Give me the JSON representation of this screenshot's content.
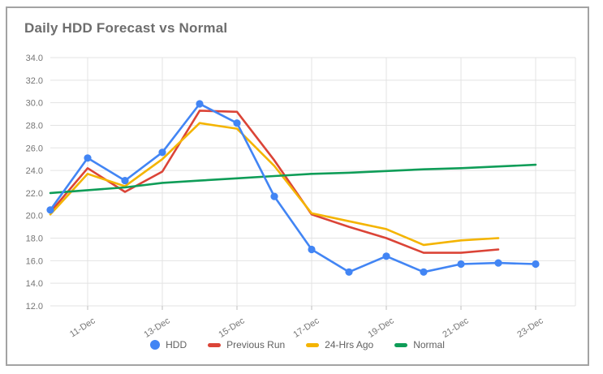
{
  "chart_data": {
    "type": "line",
    "title": "Daily HDD Forecast vs Normal",
    "xlabel": "",
    "ylabel": "",
    "ylim": [
      12,
      34
    ],
    "grid": true,
    "legend_position": "bottom",
    "x": [
      "10-Dec",
      "11-Dec",
      "12-Dec",
      "13-Dec",
      "14-Dec",
      "15-Dec",
      "16-Dec",
      "17-Dec",
      "18-Dec",
      "19-Dec",
      "20-Dec",
      "21-Dec",
      "22-Dec",
      "23-Dec"
    ],
    "x_tick_labels": [
      "11-Dec",
      "13-Dec",
      "15-Dec",
      "17-Dec",
      "19-Dec",
      "21-Dec",
      "23-Dec"
    ],
    "x_tick_indices": [
      1,
      3,
      5,
      7,
      9,
      11,
      13
    ],
    "y_ticks": [
      34,
      32,
      30,
      28,
      26,
      24,
      22,
      20,
      18,
      16,
      14,
      12
    ],
    "y_tick_labels": [
      "34.0",
      "32.0",
      "30.0",
      "28.0",
      "26.0",
      "24.0",
      "22.0",
      "20.0",
      "18.0",
      "16.0",
      "14.0",
      "12.0"
    ],
    "series": [
      {
        "name": "HDD",
        "color": "#4285f4",
        "marker": "circle",
        "values": [
          20.5,
          25.1,
          23.1,
          25.6,
          29.9,
          28.2,
          21.7,
          17.0,
          15.0,
          16.4,
          15.0,
          15.7,
          15.8,
          15.7
        ]
      },
      {
        "name": "Previous Run",
        "color": "#db4437",
        "marker": "none",
        "values": [
          20.3,
          24.2,
          22.1,
          23.9,
          29.3,
          29.2,
          24.9,
          20.1,
          19.0,
          18.0,
          16.7,
          16.7,
          17.0,
          null
        ]
      },
      {
        "name": "24-Hrs Ago",
        "color": "#f4b400",
        "marker": "none",
        "values": [
          20.1,
          23.7,
          22.6,
          25.0,
          28.2,
          27.7,
          24.4,
          20.2,
          19.5,
          18.8,
          17.4,
          17.8,
          18.0,
          null
        ]
      },
      {
        "name": "Normal",
        "color": "#0f9d58",
        "marker": "none",
        "values": [
          22.0,
          22.25,
          22.5,
          22.9,
          23.1,
          23.3,
          23.5,
          23.7,
          23.8,
          23.95,
          24.1,
          24.2,
          24.35,
          24.5
        ]
      }
    ],
    "style": {
      "grid_color": "#e3e3e3",
      "tick_color": "#bdbdbd",
      "axis_text_color": "#757575",
      "title_color": "#6d6d6d",
      "legend_text_color": "#616161"
    }
  }
}
